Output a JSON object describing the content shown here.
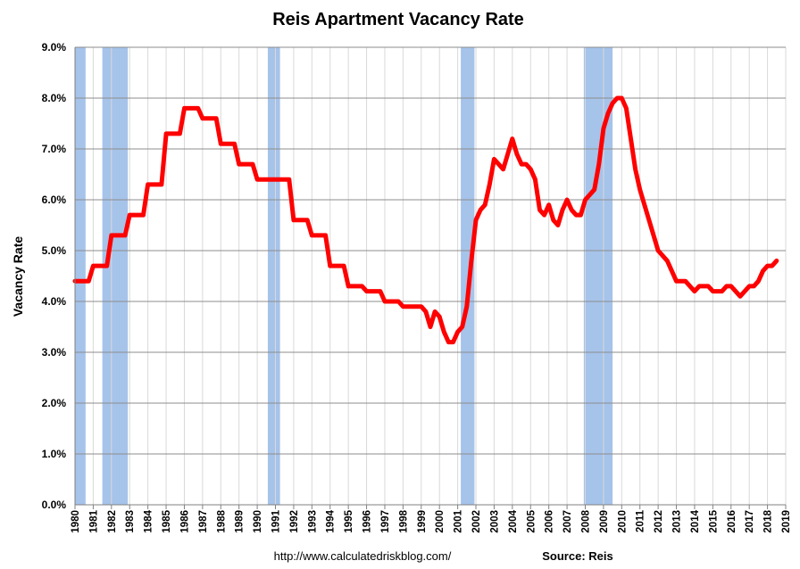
{
  "footer": {
    "url": "http://www.calculatedriskblog.com/",
    "source": "Source: Reis"
  },
  "chart_data": {
    "type": "line",
    "title": "Reis Apartment Vacancy Rate",
    "xlabel": "",
    "ylabel": "Vacancy Rate",
    "xlim": [
      1980,
      2019
    ],
    "ylim": [
      0,
      9
    ],
    "y_tick_labels": [
      "0.0%",
      "1.0%",
      "2.0%",
      "3.0%",
      "4.0%",
      "5.0%",
      "6.0%",
      "7.0%",
      "8.0%",
      "9.0%"
    ],
    "x_tick_labels": [
      "1980",
      "1981",
      "1982",
      "1983",
      "1984",
      "1985",
      "1986",
      "1987",
      "1988",
      "1989",
      "1990",
      "1991",
      "1992",
      "1993",
      "1994",
      "1995",
      "1996",
      "1997",
      "1998",
      "1999",
      "2000",
      "2001",
      "2002",
      "2003",
      "2004",
      "2005",
      "2006",
      "2007",
      "2008",
      "2009",
      "2010",
      "2011",
      "2012",
      "2013",
      "2014",
      "2015",
      "2016",
      "2017",
      "2018",
      "2019"
    ],
    "grid": true,
    "line_color": "#ff0000",
    "recession_color": "#a6c3ea",
    "recessions": [
      [
        1980.0,
        1980.58
      ],
      [
        1981.5,
        1982.9
      ],
      [
        1990.58,
        1991.25
      ],
      [
        2001.17,
        2001.92
      ],
      [
        2007.92,
        2009.5
      ]
    ],
    "series": [
      {
        "values": [
          [
            1980.0,
            4.4
          ],
          [
            1980.75,
            4.4
          ],
          [
            1981.0,
            4.7
          ],
          [
            1981.75,
            4.7
          ],
          [
            1982.0,
            5.3
          ],
          [
            1982.75,
            5.3
          ],
          [
            1983.0,
            5.7
          ],
          [
            1983.75,
            5.7
          ],
          [
            1984.0,
            6.3
          ],
          [
            1984.75,
            6.3
          ],
          [
            1985.0,
            7.3
          ],
          [
            1985.75,
            7.3
          ],
          [
            1986.0,
            7.8
          ],
          [
            1986.75,
            7.8
          ],
          [
            1987.0,
            7.6
          ],
          [
            1987.75,
            7.6
          ],
          [
            1988.0,
            7.1
          ],
          [
            1988.75,
            7.1
          ],
          [
            1989.0,
            6.7
          ],
          [
            1989.75,
            6.7
          ],
          [
            1990.0,
            6.4
          ],
          [
            1990.75,
            6.4
          ],
          [
            1991.0,
            6.4
          ],
          [
            1991.75,
            6.4
          ],
          [
            1992.0,
            5.6
          ],
          [
            1992.75,
            5.6
          ],
          [
            1993.0,
            5.3
          ],
          [
            1993.75,
            5.3
          ],
          [
            1994.0,
            4.7
          ],
          [
            1994.75,
            4.7
          ],
          [
            1995.0,
            4.3
          ],
          [
            1995.75,
            4.3
          ],
          [
            1996.0,
            4.2
          ],
          [
            1996.75,
            4.2
          ],
          [
            1997.0,
            4.0
          ],
          [
            1997.75,
            4.0
          ],
          [
            1998.0,
            3.9
          ],
          [
            1998.75,
            3.9
          ],
          [
            1999.0,
            3.9
          ],
          [
            1999.25,
            3.8
          ],
          [
            1999.5,
            3.5
          ],
          [
            1999.75,
            3.8
          ],
          [
            2000.0,
            3.7
          ],
          [
            2000.25,
            3.4
          ],
          [
            2000.5,
            3.2
          ],
          [
            2000.75,
            3.2
          ],
          [
            2001.0,
            3.4
          ],
          [
            2001.25,
            3.5
          ],
          [
            2001.5,
            3.9
          ],
          [
            2001.75,
            4.8
          ],
          [
            2002.0,
            5.6
          ],
          [
            2002.25,
            5.8
          ],
          [
            2002.5,
            5.9
          ],
          [
            2002.75,
            6.3
          ],
          [
            2003.0,
            6.8
          ],
          [
            2003.25,
            6.7
          ],
          [
            2003.5,
            6.6
          ],
          [
            2003.75,
            6.9
          ],
          [
            2004.0,
            7.2
          ],
          [
            2004.25,
            6.9
          ],
          [
            2004.5,
            6.7
          ],
          [
            2004.75,
            6.7
          ],
          [
            2005.0,
            6.6
          ],
          [
            2005.25,
            6.4
          ],
          [
            2005.5,
            5.8
          ],
          [
            2005.75,
            5.7
          ],
          [
            2006.0,
            5.9
          ],
          [
            2006.25,
            5.6
          ],
          [
            2006.5,
            5.5
          ],
          [
            2006.75,
            5.8
          ],
          [
            2007.0,
            6.0
          ],
          [
            2007.25,
            5.8
          ],
          [
            2007.5,
            5.7
          ],
          [
            2007.75,
            5.7
          ],
          [
            2008.0,
            6.0
          ],
          [
            2008.25,
            6.1
          ],
          [
            2008.5,
            6.2
          ],
          [
            2008.75,
            6.7
          ],
          [
            2009.0,
            7.4
          ],
          [
            2009.25,
            7.7
          ],
          [
            2009.5,
            7.9
          ],
          [
            2009.75,
            8.0
          ],
          [
            2010.0,
            8.0
          ],
          [
            2010.25,
            7.8
          ],
          [
            2010.5,
            7.2
          ],
          [
            2010.75,
            6.6
          ],
          [
            2011.0,
            6.2
          ],
          [
            2011.25,
            5.9
          ],
          [
            2011.5,
            5.6
          ],
          [
            2011.75,
            5.3
          ],
          [
            2012.0,
            5.0
          ],
          [
            2012.25,
            4.9
          ],
          [
            2012.5,
            4.8
          ],
          [
            2012.75,
            4.6
          ],
          [
            2013.0,
            4.4
          ],
          [
            2013.25,
            4.4
          ],
          [
            2013.5,
            4.4
          ],
          [
            2013.75,
            4.3
          ],
          [
            2014.0,
            4.2
          ],
          [
            2014.25,
            4.3
          ],
          [
            2014.5,
            4.3
          ],
          [
            2014.75,
            4.3
          ],
          [
            2015.0,
            4.2
          ],
          [
            2015.25,
            4.2
          ],
          [
            2015.5,
            4.2
          ],
          [
            2015.75,
            4.3
          ],
          [
            2016.0,
            4.3
          ],
          [
            2016.25,
            4.2
          ],
          [
            2016.5,
            4.1
          ],
          [
            2016.75,
            4.2
          ],
          [
            2017.0,
            4.3
          ],
          [
            2017.25,
            4.3
          ],
          [
            2017.5,
            4.4
          ],
          [
            2017.75,
            4.6
          ],
          [
            2018.0,
            4.7
          ],
          [
            2018.25,
            4.7
          ],
          [
            2018.5,
            4.8
          ]
        ]
      }
    ]
  }
}
